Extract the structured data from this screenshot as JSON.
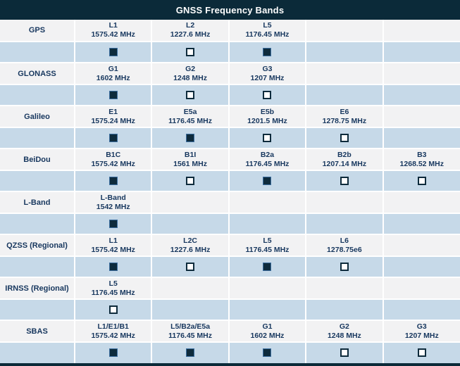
{
  "colors": {
    "header_bg": "#0b2a39",
    "header_text": "#ffffff",
    "band_row_bg": "#f2f2f3",
    "checkbox_row_bg": "#c6d9e8",
    "text": "#17375e",
    "checkbox_fill": "#0e2b3c",
    "divider": "#ffffff"
  },
  "chart_data": {
    "type": "table",
    "title": "GNSS Frequency Bands",
    "legend": {
      "checked_symbol": "filled-square",
      "unchecked_symbol": "empty-square"
    },
    "systems": [
      {
        "name": "GPS",
        "bands": [
          {
            "band": "L1",
            "frequency": "1575.42 MHz",
            "selected": true
          },
          {
            "band": "L2",
            "frequency": "1227.6 MHz",
            "selected": false
          },
          {
            "band": "L5",
            "frequency": "1176.45 MHz",
            "selected": true
          }
        ]
      },
      {
        "name": "GLONASS",
        "bands": [
          {
            "band": "G1",
            "frequency": "1602 MHz",
            "selected": true
          },
          {
            "band": "G2",
            "frequency": "1248 MHz",
            "selected": false
          },
          {
            "band": "G3",
            "frequency": "1207 MHz",
            "selected": false
          }
        ]
      },
      {
        "name": "Galileo",
        "bands": [
          {
            "band": "E1",
            "frequency": "1575.24 MHz",
            "selected": true
          },
          {
            "band": "E5a",
            "frequency": "1176.45 MHz",
            "selected": true
          },
          {
            "band": "E5b",
            "frequency": "1201.5 MHz",
            "selected": false
          },
          {
            "band": "E6",
            "frequency": "1278.75 MHz",
            "selected": false
          }
        ]
      },
      {
        "name": "BeiDou",
        "bands": [
          {
            "band": "B1C",
            "frequency": "1575.42 MHz",
            "selected": true
          },
          {
            "band": "B1I",
            "frequency": "1561 MHz",
            "selected": false
          },
          {
            "band": "B2a",
            "frequency": "1176.45 MHz",
            "selected": true
          },
          {
            "band": "B2b",
            "frequency": "1207.14 MHz",
            "selected": false
          },
          {
            "band": "B3",
            "frequency": "1268.52 MHz",
            "selected": false
          }
        ]
      },
      {
        "name": "L-Band",
        "bands": [
          {
            "band": "L-Band",
            "frequency": "1542 MHz",
            "selected": true
          }
        ]
      },
      {
        "name": "QZSS (Regional)",
        "bands": [
          {
            "band": "L1",
            "frequency": "1575.42 MHz",
            "selected": true
          },
          {
            "band": "L2C",
            "frequency": "1227.6 MHz",
            "selected": false
          },
          {
            "band": "L5",
            "frequency": "1176.45 MHz",
            "selected": true
          },
          {
            "band": "L6",
            "frequency": "1278.75e6",
            "selected": false
          }
        ]
      },
      {
        "name": "IRNSS (Regional)",
        "bands": [
          {
            "band": "L5",
            "frequency": "1176.45 MHz",
            "selected": false
          }
        ]
      },
      {
        "name": "SBAS",
        "bands": [
          {
            "band": "L1/E1/B1",
            "frequency": "1575.42 MHz",
            "selected": true
          },
          {
            "band": "L5/B2a/E5a",
            "frequency": "1176.45 MHz",
            "selected": true
          },
          {
            "band": "G1",
            "frequency": "1602 MHz",
            "selected": true
          },
          {
            "band": "G2",
            "frequency": "1248 MHz",
            "selected": false
          },
          {
            "band": "G3",
            "frequency": "1207 MHz",
            "selected": false
          }
        ]
      }
    ]
  }
}
